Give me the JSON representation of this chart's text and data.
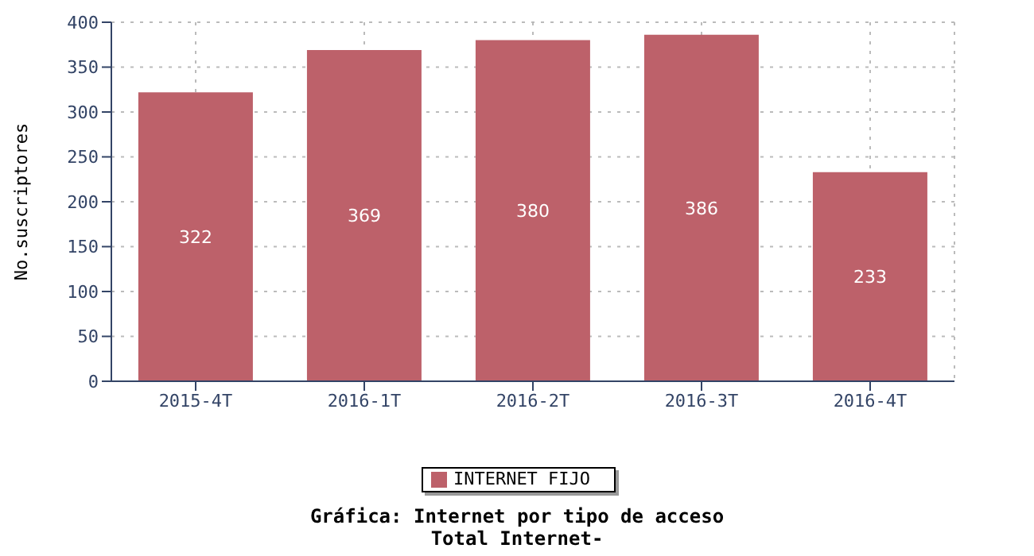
{
  "chart_data": {
    "type": "bar",
    "title": "Gráfica: Internet por tipo de acceso",
    "subtitle": "Total Internet-",
    "ylabel": "No.suscriptores",
    "categories": [
      "2015-4T",
      "2016-1T",
      "2016-2T",
      "2016-3T",
      "2016-4T"
    ],
    "series": [
      {
        "name": "INTERNET FIJO",
        "color": "#bd616a",
        "values": [
          322,
          369,
          380,
          386,
          233
        ]
      }
    ],
    "ylim": [
      0,
      400
    ],
    "yticks": [
      0,
      50,
      100,
      150,
      200,
      250,
      300,
      350,
      400
    ],
    "grid": true,
    "legend": "bottom",
    "data_labels": true
  }
}
